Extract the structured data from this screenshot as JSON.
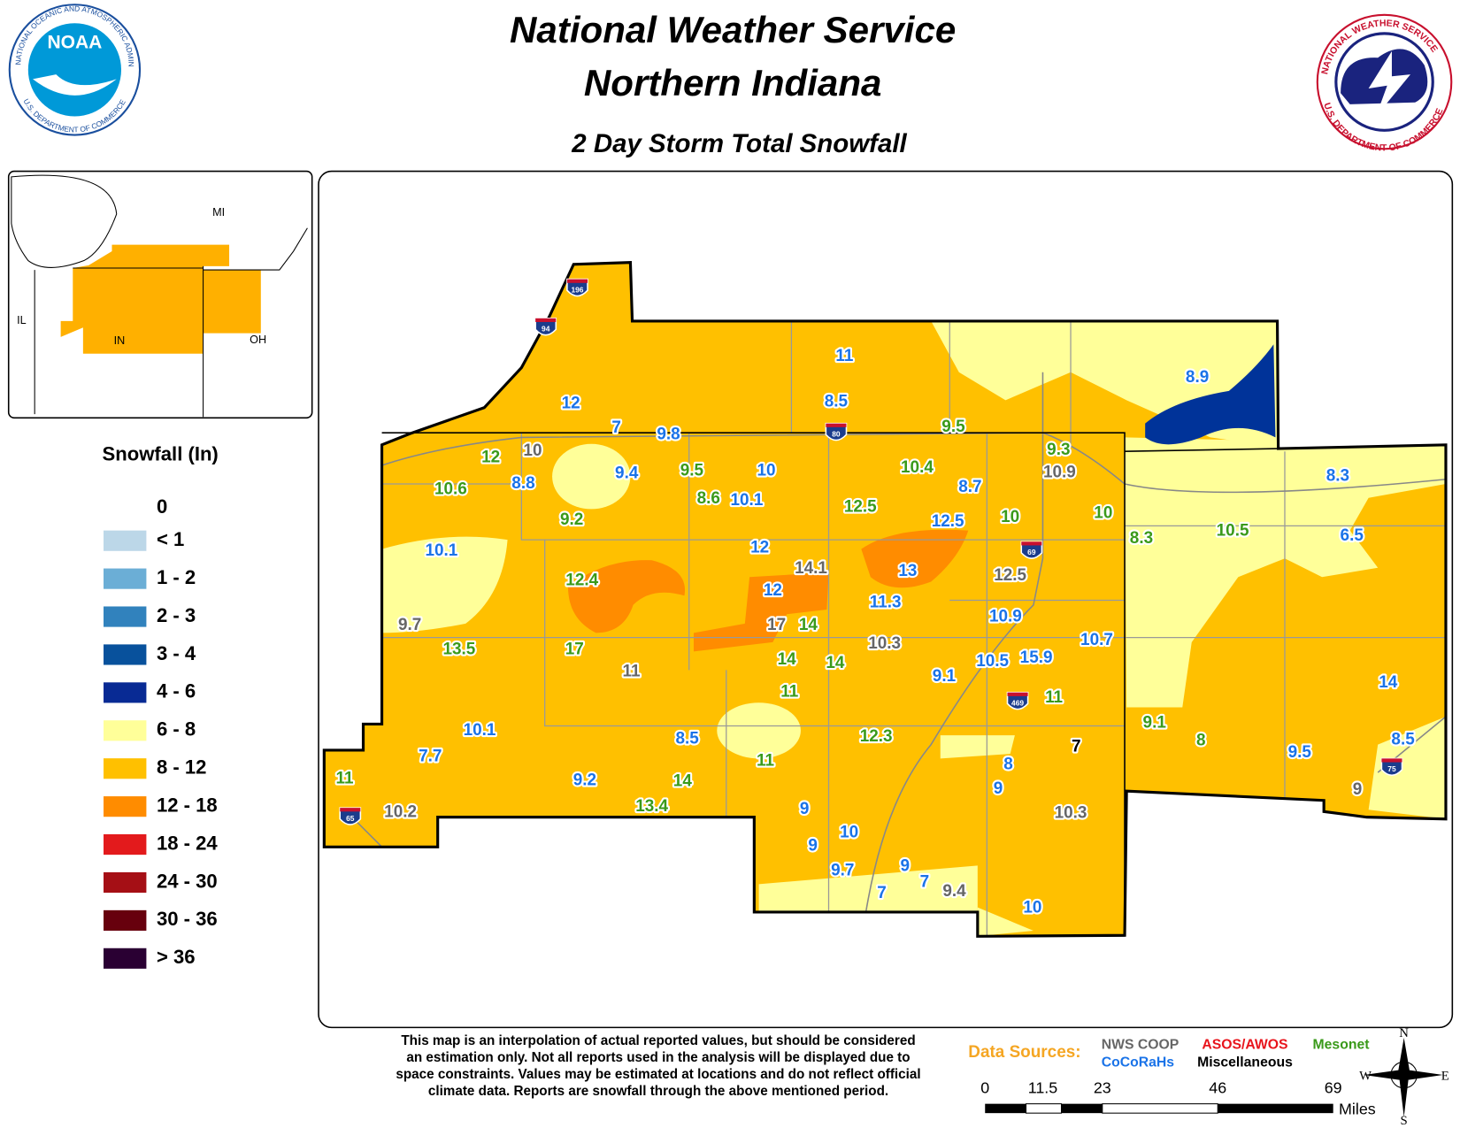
{
  "header": {
    "title_line1": "National Weather Service",
    "title_line2": "Northern Indiana",
    "subtitle": "2 Day Storm Total Snowfall"
  },
  "noaa_logo": {
    "name": "NOAA",
    "ring_top": "NATIONAL OCEANIC AND ATMOSPHERIC ADMINISTRATION",
    "ring_bottom": "U.S. DEPARTMENT OF COMMERCE"
  },
  "nws_logo": {
    "ring_top": "NATIONAL WEATHER SERVICE",
    "ring_bottom": "U.S. DEPARTMENT OF COMMERCE"
  },
  "inset": {
    "labels": [
      "MI",
      "IL",
      "IN",
      "OH"
    ]
  },
  "legend": {
    "title": "Snowfall (In)",
    "zero_label": "0",
    "items": [
      {
        "label": "< 1",
        "color": "#bcd7e8"
      },
      {
        "label": "1 - 2",
        "color": "#6baed6"
      },
      {
        "label": "2 - 3",
        "color": "#3182bd"
      },
      {
        "label": "3 - 4",
        "color": "#08519c"
      },
      {
        "label": "4 - 6",
        "color": "#082a94"
      },
      {
        "label": "6 - 8",
        "color": "#ffff99"
      },
      {
        "label": "8 - 12",
        "color": "#ffc000"
      },
      {
        "label": "12 - 18",
        "color": "#ff8c00"
      },
      {
        "label": "18 - 24",
        "color": "#e31a1c"
      },
      {
        "label": "24 - 30",
        "color": "#a50f15"
      },
      {
        "label": "30 - 36",
        "color": "#67000d"
      },
      {
        "label": "> 36",
        "color": "#2a0033"
      }
    ]
  },
  "interstates": [
    "196",
    "94",
    "80",
    "69",
    "469",
    "65",
    "75"
  ],
  "reports": [
    {
      "text": "11",
      "color": "#1a73e8"
    },
    {
      "text": "8.5",
      "color": "#1a73e8"
    },
    {
      "text": "12",
      "color": "#1a73e8"
    },
    {
      "text": "7",
      "color": "#1a73e8"
    },
    {
      "text": "9.8",
      "color": "#1a73e8"
    },
    {
      "text": "9.4",
      "color": "#1a73e8"
    },
    {
      "text": "8.8",
      "color": "#1a73e8"
    },
    {
      "text": "10",
      "color": "#1a73e8"
    },
    {
      "text": "10.1",
      "color": "#1a73e8"
    },
    {
      "text": "8.7",
      "color": "#1a73e8"
    },
    {
      "text": "12.5",
      "color": "#1a73e8"
    },
    {
      "text": "10.1",
      "color": "#1a73e8"
    },
    {
      "text": "12",
      "color": "#1a73e8"
    },
    {
      "text": "12",
      "color": "#1a73e8"
    },
    {
      "text": "13",
      "color": "#1a73e8"
    },
    {
      "text": "11.3",
      "color": "#1a73e8"
    },
    {
      "text": "10.9",
      "color": "#1a73e8"
    },
    {
      "text": "10.7",
      "color": "#1a73e8"
    },
    {
      "text": "10.5",
      "color": "#1a73e8"
    },
    {
      "text": "15.9",
      "color": "#1a73e8"
    },
    {
      "text": "9.1",
      "color": "#1a73e8"
    },
    {
      "text": "10.1",
      "color": "#1a73e8"
    },
    {
      "text": "7.7",
      "color": "#1a73e8"
    },
    {
      "text": "8.5",
      "color": "#1a73e8"
    },
    {
      "text": "9.2",
      "color": "#1a73e8"
    },
    {
      "text": "8",
      "color": "#1a73e8"
    },
    {
      "text": "9",
      "color": "#1a73e8"
    },
    {
      "text": "9",
      "color": "#1a73e8"
    },
    {
      "text": "10",
      "color": "#1a73e8"
    },
    {
      "text": "9",
      "color": "#1a73e8"
    },
    {
      "text": "9.7",
      "color": "#1a73e8"
    },
    {
      "text": "9",
      "color": "#1a73e8"
    },
    {
      "text": "7",
      "color": "#1a73e8"
    },
    {
      "text": "7",
      "color": "#1a73e8"
    },
    {
      "text": "10",
      "color": "#1a73e8"
    },
    {
      "text": "8.9",
      "color": "#1a73e8"
    },
    {
      "text": "8.3",
      "color": "#1a73e8"
    },
    {
      "text": "6.5",
      "color": "#1a73e8"
    },
    {
      "text": "14",
      "color": "#1a73e8"
    },
    {
      "text": "9.5",
      "color": "#1a73e8"
    },
    {
      "text": "8.5",
      "color": "#1a73e8"
    },
    {
      "text": "9.5",
      "color": "#3a9a1a"
    },
    {
      "text": "12",
      "color": "#3a9a1a"
    },
    {
      "text": "10.6",
      "color": "#3a9a1a"
    },
    {
      "text": "9.5",
      "color": "#3a9a1a"
    },
    {
      "text": "8.6",
      "color": "#3a9a1a"
    },
    {
      "text": "10.4",
      "color": "#3a9a1a"
    },
    {
      "text": "12.5",
      "color": "#3a9a1a"
    },
    {
      "text": "10",
      "color": "#3a9a1a"
    },
    {
      "text": "10",
      "color": "#3a9a1a"
    },
    {
      "text": "9.2",
      "color": "#3a9a1a"
    },
    {
      "text": "12.4",
      "color": "#3a9a1a"
    },
    {
      "text": "14",
      "color": "#3a9a1a"
    },
    {
      "text": "13.5",
      "color": "#3a9a1a"
    },
    {
      "text": "17",
      "color": "#3a9a1a"
    },
    {
      "text": "14",
      "color": "#3a9a1a"
    },
    {
      "text": "14",
      "color": "#3a9a1a"
    },
    {
      "text": "11",
      "color": "#3a9a1a"
    },
    {
      "text": "11",
      "color": "#3a9a1a"
    },
    {
      "text": "12.3",
      "color": "#3a9a1a"
    },
    {
      "text": "11",
      "color": "#3a9a1a"
    },
    {
      "text": "14",
      "color": "#3a9a1a"
    },
    {
      "text": "13.4",
      "color": "#3a9a1a"
    },
    {
      "text": "11",
      "color": "#3a9a1a"
    },
    {
      "text": "9.3",
      "color": "#3a9a1a"
    },
    {
      "text": "8.3",
      "color": "#3a9a1a"
    },
    {
      "text": "10.5",
      "color": "#3a9a1a"
    },
    {
      "text": "9.1",
      "color": "#3a9a1a"
    },
    {
      "text": "8",
      "color": "#3a9a1a"
    },
    {
      "text": "10",
      "color": "#666666"
    },
    {
      "text": "10.9",
      "color": "#666666"
    },
    {
      "text": "14.1",
      "color": "#666666"
    },
    {
      "text": "12.5",
      "color": "#666666"
    },
    {
      "text": "9.7",
      "color": "#666666"
    },
    {
      "text": "17",
      "color": "#666666"
    },
    {
      "text": "10.3",
      "color": "#666666"
    },
    {
      "text": "10.2",
      "color": "#666666"
    },
    {
      "text": "10.3",
      "color": "#666666"
    },
    {
      "text": "9.4",
      "color": "#666666"
    },
    {
      "text": "9",
      "color": "#666666"
    },
    {
      "text": "11",
      "color": "#666666"
    },
    {
      "text": "7",
      "color": "#000000"
    }
  ],
  "disclaimer": [
    "This map is an interpolation of actual reported values, but should be considered",
    "an estimation only. Not all reports used in the analysis will be displayed due to",
    "space constraints. Values may be estimated at locations and do not reflect official",
    "climate data. Reports are snowfall through the above mentioned period."
  ],
  "data_sources": {
    "label": "Data Sources:",
    "sources": [
      {
        "text": "NWS COOP",
        "color": "#666666"
      },
      {
        "text": "ASOS/AWOS",
        "color": "#e8141c"
      },
      {
        "text": "Mesonet",
        "color": "#3a9a1a"
      },
      {
        "text": "CoCoRaHs",
        "color": "#1a73e8"
      },
      {
        "text": "Miscellaneous",
        "color": "#000000"
      }
    ]
  },
  "scale_bar": {
    "labels": [
      "0",
      "11.5",
      "23",
      "46",
      "69"
    ],
    "unit": "Miles"
  },
  "compass": {
    "north": "N",
    "east": "E",
    "south": "S",
    "west": "W"
  }
}
